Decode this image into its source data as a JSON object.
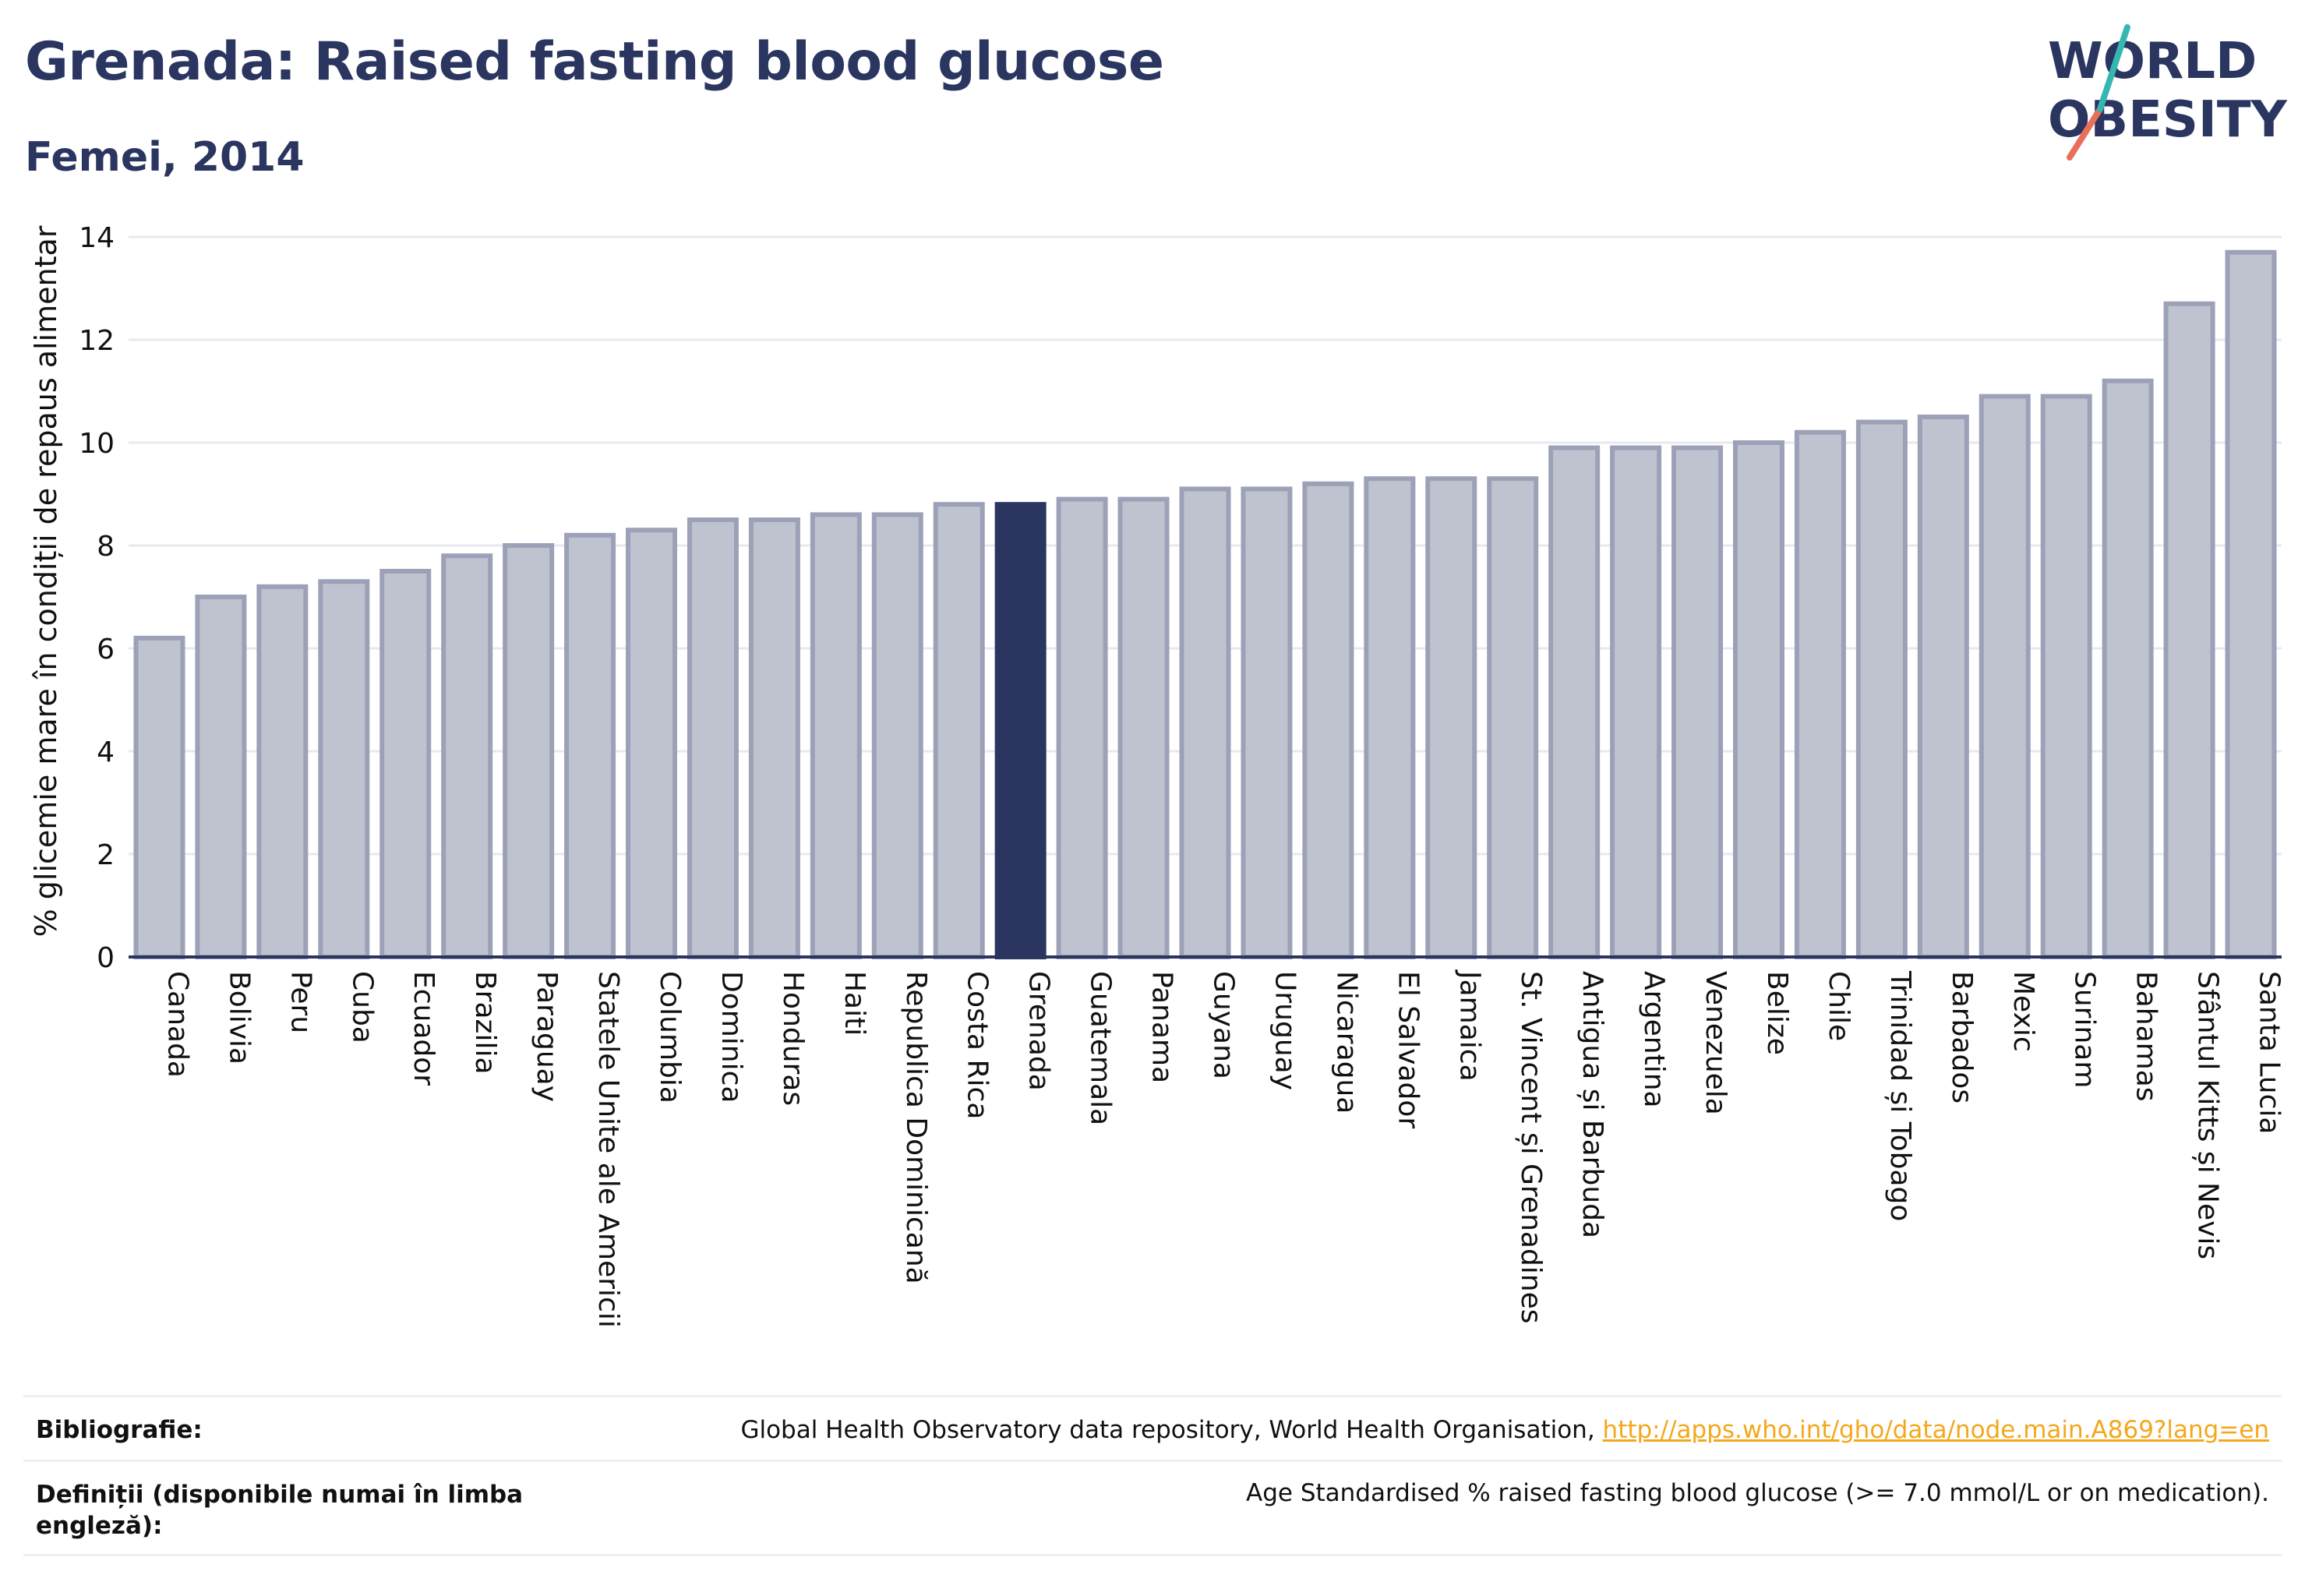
{
  "header": {
    "title": "Grenada: Raised fasting blood glucose",
    "subtitle": "Femei, 2014"
  },
  "logo": {
    "line1": "WORLD",
    "line2": "OBESITY"
  },
  "colors": {
    "bar_fill": "#bfc3d0",
    "bar_stroke": "#9ca1b8",
    "highlight": "#2a3560",
    "grid": "#e8e9ef",
    "axis": "#2a3560",
    "link": "#f3a81c"
  },
  "chart_data": {
    "type": "bar",
    "title": "Grenada: Raised fasting blood glucose",
    "subtitle": "Femei, 2014",
    "xlabel": "",
    "ylabel": "% glicemie mare în condiții de repaus alimentar",
    "ylim": [
      0,
      14
    ],
    "yticks": [
      0,
      2,
      4,
      6,
      8,
      10,
      12,
      14
    ],
    "grid": true,
    "highlight_category": "Grenada",
    "categories": [
      "Canada",
      "Bolivia",
      "Peru",
      "Cuba",
      "Ecuador",
      "Brazilia",
      "Paraguay",
      "Statele Unite ale Americii",
      "Columbia",
      "Dominica",
      "Honduras",
      "Haiti",
      "Republica Dominicană",
      "Costa Rica",
      "Grenada",
      "Guatemala",
      "Panama",
      "Guyana",
      "Uruguay",
      "Nicaragua",
      "El Salvador",
      "Jamaica",
      "St. Vincent și Grenadines",
      "Antigua și Barbuda",
      "Argentina",
      "Venezuela",
      "Belize",
      "Chile",
      "Trinidad și Tobago",
      "Barbados",
      "Mexic",
      "Surinam",
      "Bahamas",
      "Sfântul Kitts și Nevis",
      "Santa Lucia"
    ],
    "values": [
      6.2,
      7.0,
      7.2,
      7.3,
      7.5,
      7.8,
      8.0,
      8.2,
      8.3,
      8.5,
      8.5,
      8.6,
      8.6,
      8.8,
      8.8,
      8.9,
      8.9,
      9.1,
      9.1,
      9.2,
      9.3,
      9.3,
      9.3,
      9.9,
      9.9,
      9.9,
      10.0,
      10.2,
      10.4,
      10.5,
      10.9,
      10.9,
      11.2,
      12.7,
      13.7
    ]
  },
  "footer": {
    "bibliography_label": "Bibliografie:",
    "bibliography_text": "Global Health Observatory data repository, World Health Organisation, ",
    "bibliography_link": "http://apps.who.int/gho/data/node.main.A869?lang=en",
    "definitions_label": "Definiții (disponibile numai în limba engleză):",
    "definitions_text": "Age Standardised % raised fasting blood glucose (>= 7.0 mmol/L or on medication)."
  }
}
